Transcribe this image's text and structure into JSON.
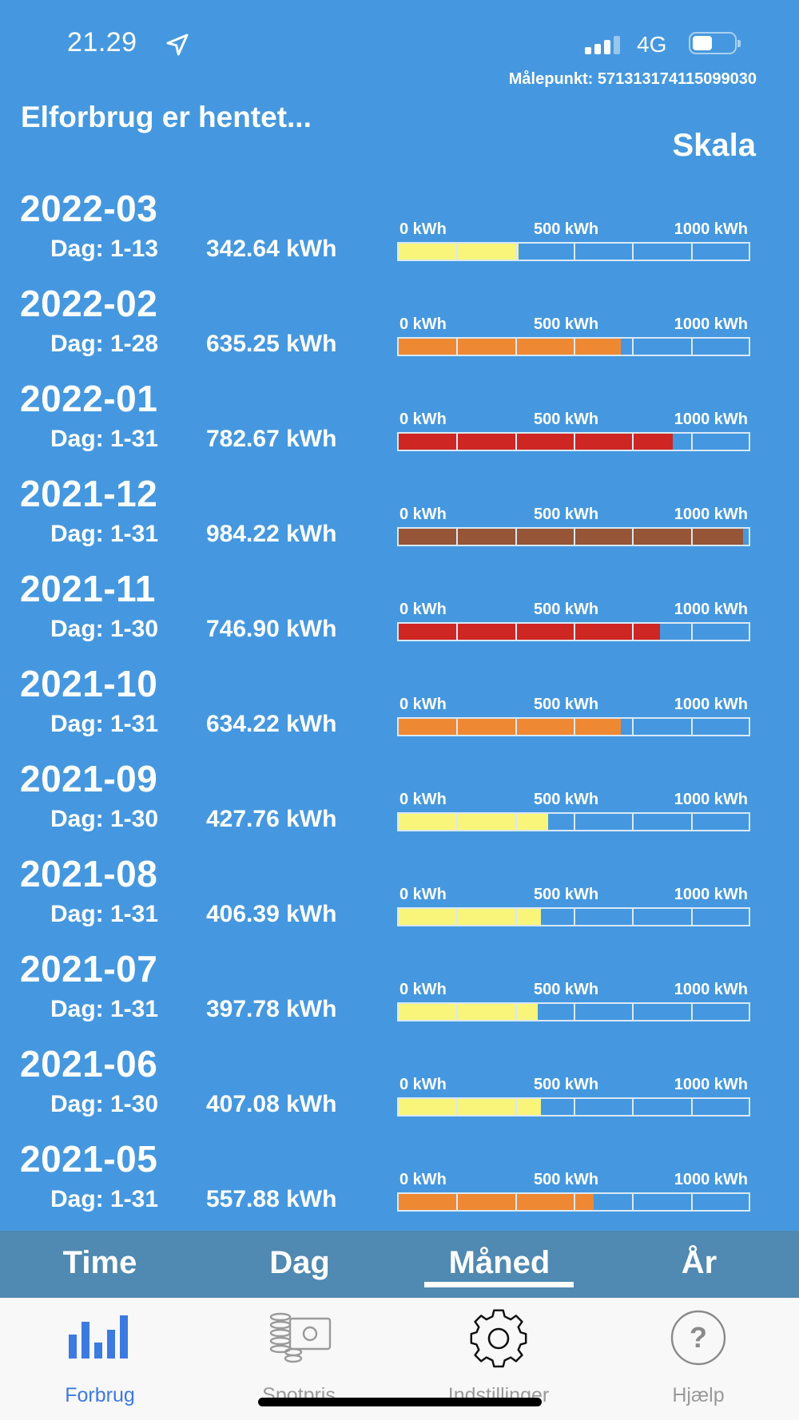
{
  "status_bar": {
    "time": "21.29",
    "network": "4G"
  },
  "header": {
    "maalepunkt": "Målepunkt: 571313174115099030",
    "status": "Elforbrug er hentet...",
    "scale_button": "Skala"
  },
  "scale_labels": {
    "zero": "0 kWh",
    "mid": "500 kWh",
    "max": "1000 kWh"
  },
  "months": [
    {
      "title": "2022-03",
      "days": "Dag: 1-13",
      "kwh_text": "342.64 kWh",
      "kwh": 342.64,
      "color": "#F8F57A"
    },
    {
      "title": "2022-02",
      "days": "Dag: 1-28",
      "kwh_text": "635.25 kWh",
      "kwh": 635.25,
      "color": "#EE8833"
    },
    {
      "title": "2022-01",
      "days": "Dag: 1-31",
      "kwh_text": "782.67 kWh",
      "kwh": 782.67,
      "color": "#CE2623"
    },
    {
      "title": "2021-12",
      "days": "Dag: 1-31",
      "kwh_text": "984.22 kWh",
      "kwh": 984.22,
      "color": "#955536"
    },
    {
      "title": "2021-11",
      "days": "Dag: 1-30",
      "kwh_text": "746.90 kWh",
      "kwh": 746.9,
      "color": "#CE2623"
    },
    {
      "title": "2021-10",
      "days": "Dag: 1-31",
      "kwh_text": "634.22 kWh",
      "kwh": 634.22,
      "color": "#EE8833"
    },
    {
      "title": "2021-09",
      "days": "Dag: 1-30",
      "kwh_text": "427.76 kWh",
      "kwh": 427.76,
      "color": "#F8F57A"
    },
    {
      "title": "2021-08",
      "days": "Dag: 1-31",
      "kwh_text": "406.39 kWh",
      "kwh": 406.39,
      "color": "#F8F57A"
    },
    {
      "title": "2021-07",
      "days": "Dag: 1-31",
      "kwh_text": "397.78 kWh",
      "kwh": 397.78,
      "color": "#F8F57A"
    },
    {
      "title": "2021-06",
      "days": "Dag: 1-30",
      "kwh_text": "407.08 kWh",
      "kwh": 407.08,
      "color": "#F8F57A"
    },
    {
      "title": "2021-05",
      "days": "Dag: 1-31",
      "kwh_text": "557.88 kWh",
      "kwh": 557.88,
      "color": "#EE8833"
    }
  ],
  "scale_max_kwh": 1000,
  "period_tabs": {
    "time": "Time",
    "day": "Dag",
    "month": "Måned",
    "year": "År",
    "selected": "Måned"
  },
  "bottom_nav": {
    "forbrug": "Forbrug",
    "spotpris": "Spotpris",
    "indstillinger": "Indstillinger",
    "hjaelp": "Hjælp",
    "active": "Forbrug"
  },
  "colors": {
    "background": "#4598DF",
    "tab_bar": "#5089B1",
    "active_nav": "#3D7AE0",
    "inactive_nav": "#9A9A9A"
  },
  "icons": {
    "location": "location-arrow-icon",
    "forbrug": "bar-chart-icon",
    "spotpris": "coins-bill-icon",
    "indstillinger": "gear-icon",
    "hjaelp": "help-circle-icon"
  }
}
